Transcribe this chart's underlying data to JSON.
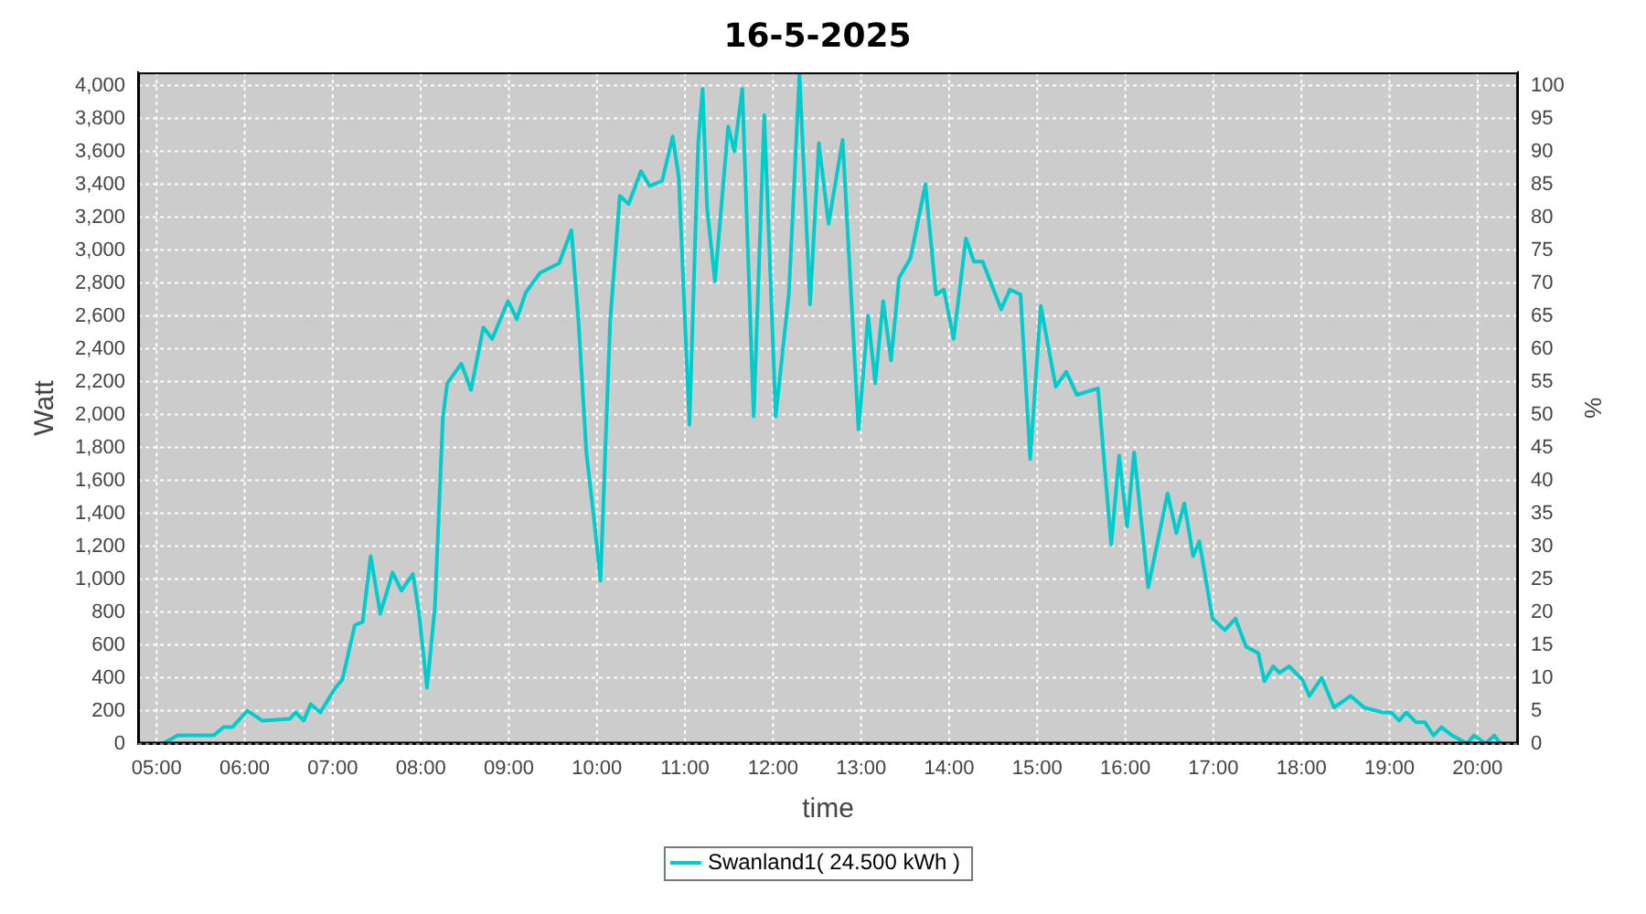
{
  "chart_data": {
    "type": "line",
    "title": "16-5-2025",
    "xlabel": "time",
    "ylabel": "Watt",
    "y2label": "%",
    "x": [
      5.07,
      5.24,
      5.65,
      5.76,
      5.86,
      6.03,
      6.2,
      6.51,
      6.58,
      6.67,
      6.75,
      6.86,
      7.03,
      7.11,
      7.25,
      7.34,
      7.43,
      7.54,
      7.68,
      7.78,
      7.91,
      7.98,
      8.07,
      8.16,
      8.25,
      8.3,
      8.46,
      8.57,
      8.71,
      8.81,
      8.99,
      9.09,
      9.19,
      9.35,
      9.57,
      9.71,
      9.79,
      9.88,
      9.97,
      10.04,
      10.15,
      10.26,
      10.36,
      10.5,
      10.6,
      10.74,
      10.86,
      10.93,
      11.05,
      11.15,
      11.2,
      11.25,
      11.34,
      11.49,
      11.56,
      11.65,
      11.78,
      11.9,
      12.03,
      12.18,
      12.3,
      12.42,
      12.52,
      12.63,
      12.79,
      12.97,
      13.08,
      13.16,
      13.25,
      13.34,
      13.43,
      13.56,
      13.73,
      13.85,
      13.94,
      14.05,
      14.19,
      14.28,
      14.38,
      14.59,
      14.69,
      14.81,
      14.92,
      15.04,
      15.21,
      15.33,
      15.45,
      15.69,
      15.84,
      15.93,
      16.02,
      16.1,
      16.26,
      16.48,
      16.58,
      16.67,
      16.77,
      16.84,
      16.99,
      17.13,
      17.25,
      17.37,
      17.51,
      17.58,
      17.68,
      17.75,
      17.86,
      18.01,
      18.09,
      18.23,
      18.37,
      18.56,
      18.71,
      18.92,
      19.02,
      19.11,
      19.19,
      19.3,
      19.4,
      19.5,
      19.59,
      19.71,
      19.88,
      19.96,
      20.09,
      20.19,
      20.26
    ],
    "series": [
      {
        "name": "Swanland1( 24.500 kWh )",
        "color": "#00cccc",
        "values": [
          0,
          50,
          50,
          100,
          100,
          200,
          140,
          150,
          190,
          140,
          240,
          190,
          340,
          390,
          720,
          740,
          1140,
          790,
          1040,
          930,
          1030,
          790,
          340,
          830,
          1980,
          2190,
          2310,
          2150,
          2530,
          2460,
          2690,
          2580,
          2740,
          2860,
          2920,
          3120,
          2570,
          1770,
          1350,
          990,
          2570,
          3330,
          3280,
          3480,
          3390,
          3420,
          3690,
          3440,
          1940,
          3650,
          3980,
          3260,
          2810,
          3750,
          3600,
          3980,
          1990,
          3820,
          1990,
          2740,
          4070,
          2670,
          3650,
          3160,
          3670,
          1910,
          2600,
          2190,
          2690,
          2330,
          2830,
          2950,
          3400,
          2730,
          2760,
          2460,
          3070,
          2930,
          2930,
          2640,
          2760,
          2730,
          1730,
          2660,
          2170,
          2260,
          2120,
          2160,
          1210,
          1750,
          1320,
          1770,
          950,
          1520,
          1280,
          1460,
          1140,
          1230,
          760,
          690,
          760,
          590,
          550,
          380,
          470,
          430,
          470,
          390,
          290,
          400,
          220,
          290,
          220,
          190,
          190,
          140,
          190,
          130,
          130,
          50,
          100,
          50,
          0,
          50,
          0,
          50,
          0
        ]
      }
    ],
    "xlim": [
      4.79,
      20.46
    ],
    "xticks": [
      {
        "value": 5,
        "label": "05:00"
      },
      {
        "value": 6,
        "label": "06:00"
      },
      {
        "value": 7,
        "label": "07:00"
      },
      {
        "value": 8,
        "label": "08:00"
      },
      {
        "value": 9,
        "label": "09:00"
      },
      {
        "value": 10,
        "label": "10:00"
      },
      {
        "value": 11,
        "label": "11:00"
      },
      {
        "value": 12,
        "label": "12:00"
      },
      {
        "value": 13,
        "label": "13:00"
      },
      {
        "value": 14,
        "label": "14:00"
      },
      {
        "value": 15,
        "label": "15:00"
      },
      {
        "value": 16,
        "label": "16:00"
      },
      {
        "value": 17,
        "label": "17:00"
      },
      {
        "value": 18,
        "label": "18:00"
      },
      {
        "value": 19,
        "label": "19:00"
      },
      {
        "value": 20,
        "label": "20:00"
      }
    ],
    "ylim": [
      0,
      4080
    ],
    "yticks": [
      0,
      200,
      400,
      600,
      800,
      {
        "value": 1000,
        "label": "1,000"
      },
      {
        "value": 1200,
        "label": "1,200"
      },
      {
        "value": 1400,
        "label": "1,400"
      },
      {
        "value": 1600,
        "label": "1,600"
      },
      {
        "value": 1800,
        "label": "1,800"
      },
      {
        "value": 2000,
        "label": "2,000"
      },
      {
        "value": 2200,
        "label": "2,200"
      },
      {
        "value": 2400,
        "label": "2,400"
      },
      {
        "value": 2600,
        "label": "2,600"
      },
      {
        "value": 2800,
        "label": "2,800"
      },
      {
        "value": 3000,
        "label": "3,000"
      },
      {
        "value": 3200,
        "label": "3,200"
      },
      {
        "value": 3400,
        "label": "3,400"
      },
      {
        "value": 3600,
        "label": "3,600"
      },
      {
        "value": 3800,
        "label": "3,800"
      },
      {
        "value": 4000,
        "label": "4,000"
      }
    ],
    "y2lim": [
      0,
      102
    ],
    "y2ticks": [
      0,
      5,
      10,
      15,
      20,
      25,
      30,
      35,
      40,
      45,
      50,
      55,
      60,
      65,
      70,
      75,
      80,
      85,
      90,
      95,
      100
    ],
    "grid": true,
    "legend": "bottom",
    "marker": "none",
    "line_style": "solid"
  }
}
